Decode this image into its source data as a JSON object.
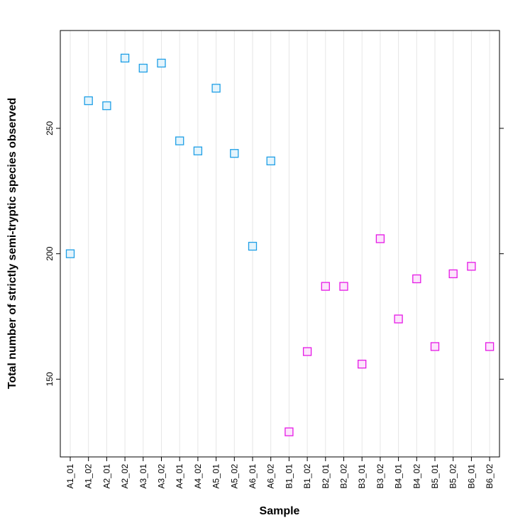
{
  "chart_data": {
    "type": "scatter",
    "xlabel": "Sample",
    "ylabel": "Total number of strictly semi-tryptic species observed",
    "ylim": [
      119,
      289
    ],
    "yticks": [
      150,
      200,
      250
    ],
    "grid": "vertical",
    "categories": [
      "A1_01",
      "A1_02",
      "A2_01",
      "A2_02",
      "A3_01",
      "A3_02",
      "A4_01",
      "A4_02",
      "A5_01",
      "A5_02",
      "A6_01",
      "A6_02",
      "B1_01",
      "B1_02",
      "B2_01",
      "B2_02",
      "B3_01",
      "B3_02",
      "B4_01",
      "B4_02",
      "B5_01",
      "B5_02",
      "B6_01",
      "B6_02"
    ],
    "series": [
      {
        "color": "#1E9FE6",
        "fill": "#E4F4FC",
        "categories": [
          "A1_01",
          "A1_02",
          "A2_01",
          "A2_02",
          "A3_01",
          "A3_02",
          "A4_01",
          "A4_02",
          "A5_01",
          "A5_02",
          "A6_01",
          "A6_02"
        ],
        "values": [
          200,
          261,
          259,
          278,
          274,
          276,
          245,
          241,
          266,
          240,
          203,
          237
        ]
      },
      {
        "color": "#E619E6",
        "fill": "#FCE4FC",
        "categories": [
          "B1_01",
          "B1_02",
          "B2_01",
          "B2_02",
          "B3_01",
          "B3_02",
          "B4_01",
          "B4_02",
          "B5_01",
          "B5_02",
          "B6_01",
          "B6_02"
        ],
        "values": [
          129,
          161,
          187,
          187,
          156,
          206,
          174,
          190,
          163,
          192,
          195,
          163
        ]
      }
    ]
  }
}
